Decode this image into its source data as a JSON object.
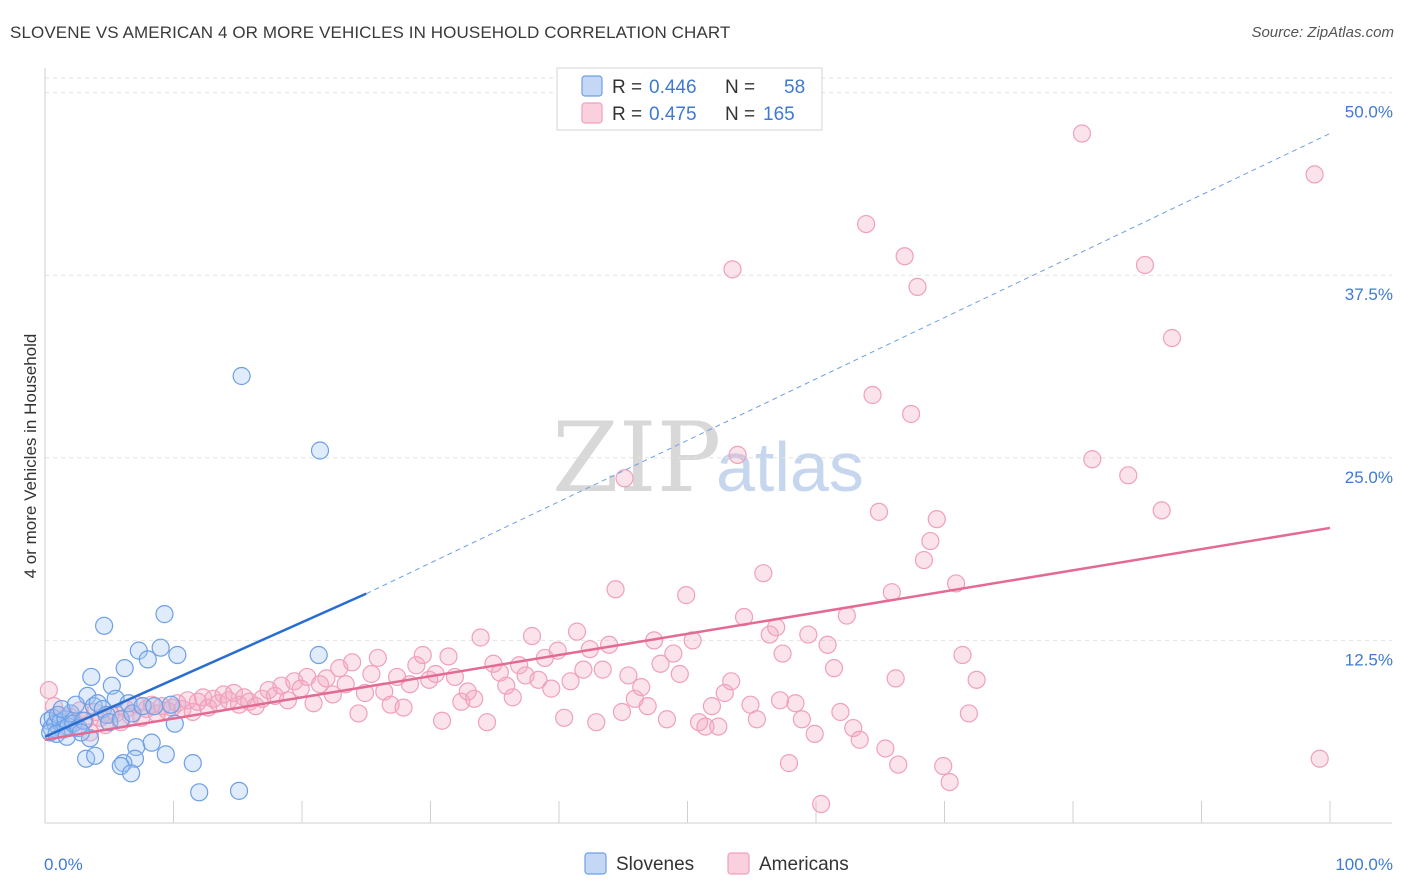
{
  "header": {
    "title": "SLOVENE VS AMERICAN 4 OR MORE VEHICLES IN HOUSEHOLD CORRELATION CHART",
    "source": "Source: ZipAtlas.com"
  },
  "watermark": {
    "zip": "ZIP",
    "atlas": "atlas"
  },
  "legend": {
    "rows": [
      {
        "r_label": "R =",
        "r_value": "0.446",
        "n_label": "N =",
        "n_value": "58"
      },
      {
        "r_label": "R =",
        "r_value": "0.475",
        "n_label": "N =",
        "n_value": "165"
      }
    ]
  },
  "chart_data": {
    "type": "scatter",
    "title": "SLOVENE VS AMERICAN 4 OR MORE VEHICLES IN HOUSEHOLD CORRELATION CHART",
    "xlabel": "",
    "ylabel": "4 or more Vehicles in Household",
    "xlim": [
      0,
      100
    ],
    "ylim": [
      0,
      51
    ],
    "x_tick_labels": [
      "0.0%",
      "100.0%"
    ],
    "y_ticks": [
      12.5,
      25.0,
      37.5,
      50.0
    ],
    "y_tick_labels": [
      "12.5%",
      "25.0%",
      "37.5%",
      "50.0%"
    ],
    "grid": true,
    "legend_position": "top-center",
    "colors": {
      "Slovenes": "#6d9fe6",
      "Americans": "#f0a0bb",
      "slovenes_line": "#2a6dd1",
      "americans_line": "#e36b93"
    },
    "series": [
      {
        "name": "Slovenes",
        "r": 0.446,
        "n": 58,
        "trend": {
          "x0": 0,
          "y0": 5.9,
          "x1": 25,
          "y1": 15.7,
          "dashed_to_x": 100,
          "dashed_to_y": 47.2
        },
        "points": [
          [
            0.3,
            7.0
          ],
          [
            0.5,
            6.5
          ],
          [
            0.6,
            7.2
          ],
          [
            0.8,
            6.8
          ],
          [
            1.0,
            7.4
          ],
          [
            1.2,
            6.9
          ],
          [
            1.4,
            6.4
          ],
          [
            1.6,
            7.1
          ],
          [
            1.8,
            6.6
          ],
          [
            2.0,
            7.5
          ],
          [
            0.4,
            6.2
          ],
          [
            0.9,
            6.1
          ],
          [
            1.3,
            7.8
          ],
          [
            1.7,
            5.9
          ],
          [
            2.2,
            6.8
          ],
          [
            2.6,
            6.5
          ],
          [
            3.0,
            7.0
          ],
          [
            3.3,
            8.7
          ],
          [
            3.5,
            5.8
          ],
          [
            3.8,
            8.0
          ],
          [
            2.4,
            8.1
          ],
          [
            2.8,
            6.2
          ],
          [
            3.2,
            4.4
          ],
          [
            3.6,
            10.0
          ],
          [
            4.1,
            8.2
          ],
          [
            4.5,
            7.8
          ],
          [
            4.6,
            13.5
          ],
          [
            4.8,
            7.4
          ],
          [
            5.2,
            9.4
          ],
          [
            5.5,
            8.5
          ],
          [
            5.0,
            6.9
          ],
          [
            5.9,
            7.1
          ],
          [
            6.2,
            10.6
          ],
          [
            6.5,
            8.2
          ],
          [
            6.8,
            7.5
          ],
          [
            7.1,
            5.2
          ],
          [
            7.3,
            11.8
          ],
          [
            7.6,
            8.0
          ],
          [
            8.0,
            11.2
          ],
          [
            8.5,
            8.0
          ],
          [
            9.3,
            14.3
          ],
          [
            9.8,
            8.1
          ],
          [
            9.0,
            12.0
          ],
          [
            10.3,
            11.5
          ],
          [
            10.1,
            6.8
          ],
          [
            11.5,
            4.1
          ],
          [
            12.0,
            2.1
          ],
          [
            15.3,
            30.6
          ],
          [
            15.1,
            2.2
          ],
          [
            21.4,
            25.5
          ],
          [
            21.3,
            11.5
          ],
          [
            7.0,
            4.4
          ],
          [
            8.3,
            5.5
          ],
          [
            3.9,
            4.6
          ],
          [
            6.1,
            4.1
          ],
          [
            5.9,
            3.9
          ],
          [
            6.7,
            3.4
          ],
          [
            9.4,
            4.7
          ]
        ]
      },
      {
        "name": "Americans",
        "r": 0.475,
        "n": 165,
        "trend": {
          "x0": 0,
          "y0": 5.7,
          "x1": 100,
          "y1": 20.2
        },
        "points": [
          [
            0.3,
            9.1
          ],
          [
            0.7,
            8.0
          ],
          [
            1.1,
            7.4
          ],
          [
            1.5,
            6.6
          ],
          [
            1.9,
            7.3
          ],
          [
            2.3,
            6.9
          ],
          [
            2.7,
            7.7
          ],
          [
            3.1,
            7.0
          ],
          [
            3.5,
            6.2
          ],
          [
            3.9,
            7.6
          ],
          [
            4.3,
            7.2
          ],
          [
            4.7,
            6.7
          ],
          [
            5.1,
            7.4
          ],
          [
            5.5,
            7.5
          ],
          [
            5.9,
            6.9
          ],
          [
            6.3,
            7.8
          ],
          [
            6.7,
            7.3
          ],
          [
            7.1,
            8.1
          ],
          [
            7.5,
            7.2
          ],
          [
            7.9,
            7.8
          ],
          [
            8.3,
            8.1
          ],
          [
            8.7,
            7.5
          ],
          [
            9.1,
            8.0
          ],
          [
            9.5,
            7.7
          ],
          [
            9.9,
            7.9
          ],
          [
            10.3,
            8.2
          ],
          [
            10.7,
            7.8
          ],
          [
            11.1,
            8.4
          ],
          [
            11.5,
            7.6
          ],
          [
            11.9,
            8.3
          ],
          [
            12.3,
            8.6
          ],
          [
            12.7,
            7.9
          ],
          [
            13.1,
            8.5
          ],
          [
            13.5,
            8.2
          ],
          [
            13.9,
            8.8
          ],
          [
            14.3,
            8.4
          ],
          [
            14.7,
            8.9
          ],
          [
            15.1,
            8.1
          ],
          [
            15.5,
            8.6
          ],
          [
            15.9,
            8.3
          ],
          [
            16.4,
            8.0
          ],
          [
            16.9,
            8.5
          ],
          [
            17.4,
            9.1
          ],
          [
            17.9,
            8.7
          ],
          [
            18.4,
            9.4
          ],
          [
            18.9,
            8.4
          ],
          [
            19.4,
            9.7
          ],
          [
            19.9,
            9.2
          ],
          [
            20.4,
            10.0
          ],
          [
            20.9,
            8.2
          ],
          [
            21.4,
            9.5
          ],
          [
            21.9,
            9.9
          ],
          [
            22.4,
            8.8
          ],
          [
            22.9,
            10.6
          ],
          [
            23.4,
            9.5
          ],
          [
            23.9,
            11.0
          ],
          [
            24.4,
            7.5
          ],
          [
            24.9,
            8.9
          ],
          [
            25.4,
            10.2
          ],
          [
            25.9,
            11.3
          ],
          [
            26.4,
            9.0
          ],
          [
            26.9,
            8.1
          ],
          [
            27.4,
            10.0
          ],
          [
            27.9,
            7.9
          ],
          [
            28.4,
            9.5
          ],
          [
            28.9,
            10.8
          ],
          [
            29.4,
            11.5
          ],
          [
            29.9,
            9.8
          ],
          [
            30.4,
            10.2
          ],
          [
            30.9,
            7.0
          ],
          [
            31.4,
            11.4
          ],
          [
            31.9,
            10.0
          ],
          [
            32.4,
            8.3
          ],
          [
            32.9,
            9.0
          ],
          [
            33.4,
            8.5
          ],
          [
            33.9,
            12.7
          ],
          [
            34.4,
            6.9
          ],
          [
            34.9,
            10.9
          ],
          [
            35.4,
            10.3
          ],
          [
            35.9,
            9.4
          ],
          [
            36.4,
            8.6
          ],
          [
            36.9,
            10.8
          ],
          [
            37.4,
            10.1
          ],
          [
            37.9,
            12.8
          ],
          [
            38.4,
            9.8
          ],
          [
            38.9,
            11.3
          ],
          [
            39.4,
            9.2
          ],
          [
            39.9,
            11.8
          ],
          [
            40.4,
            7.2
          ],
          [
            40.9,
            9.7
          ],
          [
            41.4,
            13.1
          ],
          [
            41.9,
            10.5
          ],
          [
            42.4,
            11.9
          ],
          [
            42.9,
            6.9
          ],
          [
            43.4,
            10.5
          ],
          [
            43.9,
            12.2
          ],
          [
            44.4,
            16.0
          ],
          [
            44.9,
            7.6
          ],
          [
            45.4,
            10.1
          ],
          [
            45.9,
            8.5
          ],
          [
            46.4,
            9.3
          ],
          [
            46.9,
            8.0
          ],
          [
            47.4,
            12.5
          ],
          [
            47.9,
            10.9
          ],
          [
            48.4,
            7.1
          ],
          [
            48.9,
            11.6
          ],
          [
            49.4,
            10.2
          ],
          [
            49.9,
            15.6
          ],
          [
            50.4,
            12.5
          ],
          [
            50.9,
            6.9
          ],
          [
            51.4,
            6.6
          ],
          [
            51.9,
            8.0
          ],
          [
            52.4,
            6.6
          ],
          [
            52.9,
            8.9
          ],
          [
            53.4,
            9.7
          ],
          [
            53.9,
            25.2
          ],
          [
            54.4,
            14.1
          ],
          [
            54.9,
            8.1
          ],
          [
            55.4,
            7.1
          ],
          [
            55.9,
            17.1
          ],
          [
            56.4,
            12.9
          ],
          [
            56.9,
            13.4
          ],
          [
            57.4,
            11.6
          ],
          [
            57.9,
            4.1
          ],
          [
            58.4,
            8.2
          ],
          [
            58.9,
            7.1
          ],
          [
            59.4,
            12.9
          ],
          [
            59.9,
            6.1
          ],
          [
            60.4,
            1.3
          ],
          [
            60.9,
            12.2
          ],
          [
            61.4,
            10.6
          ],
          [
            61.9,
            7.6
          ],
          [
            62.4,
            14.2
          ],
          [
            62.9,
            6.5
          ],
          [
            63.4,
            5.7
          ],
          [
            63.9,
            41.0
          ],
          [
            64.4,
            29.3
          ],
          [
            64.9,
            21.3
          ],
          [
            65.4,
            5.1
          ],
          [
            65.9,
            15.8
          ],
          [
            66.4,
            4.0
          ],
          [
            66.9,
            38.8
          ],
          [
            67.4,
            28.0
          ],
          [
            67.9,
            36.7
          ],
          [
            68.4,
            18.0
          ],
          [
            68.9,
            19.3
          ],
          [
            69.4,
            20.8
          ],
          [
            69.9,
            3.9
          ],
          [
            70.4,
            2.8
          ],
          [
            70.9,
            16.4
          ],
          [
            71.4,
            11.5
          ],
          [
            71.9,
            7.5
          ],
          [
            80.7,
            47.2
          ],
          [
            81.5,
            24.9
          ],
          [
            84.3,
            23.8
          ],
          [
            85.6,
            38.2
          ],
          [
            86.9,
            21.4
          ],
          [
            87.7,
            33.2
          ],
          [
            98.8,
            44.4
          ],
          [
            99.2,
            4.4
          ],
          [
            53.5,
            37.9
          ],
          [
            45.1,
            23.6
          ],
          [
            66.2,
            9.9
          ],
          [
            72.5,
            9.8
          ],
          [
            57.2,
            8.4
          ]
        ]
      }
    ]
  },
  "bottom_legend": {
    "items": [
      "Slovenes",
      "Americans"
    ]
  }
}
